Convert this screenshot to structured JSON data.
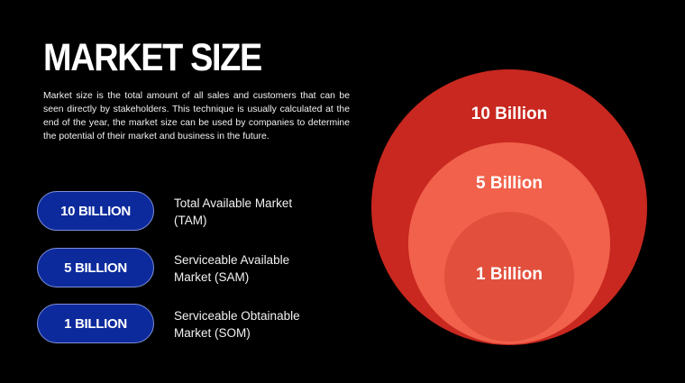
{
  "header": {
    "title": "MARKET SIZE",
    "description": "Market size is the total amount of all sales and customers that can be seen directly by stakeholders. This technique is usually calculated at the end of the year, the market size can be used by companies to determine the potential of their market and business in the future."
  },
  "tiers": [
    {
      "badge": "10 BILLION",
      "label": "Total Available Market (TAM)"
    },
    {
      "badge": "5 BILLION",
      "label": "Serviceable Available Market (SAM)"
    },
    {
      "badge": "1 BILLION",
      "label": "Serviceable Obtainable Market (SOM)"
    }
  ],
  "circles": [
    "10 Billion",
    "5 Billion",
    "1 Billion"
  ]
}
